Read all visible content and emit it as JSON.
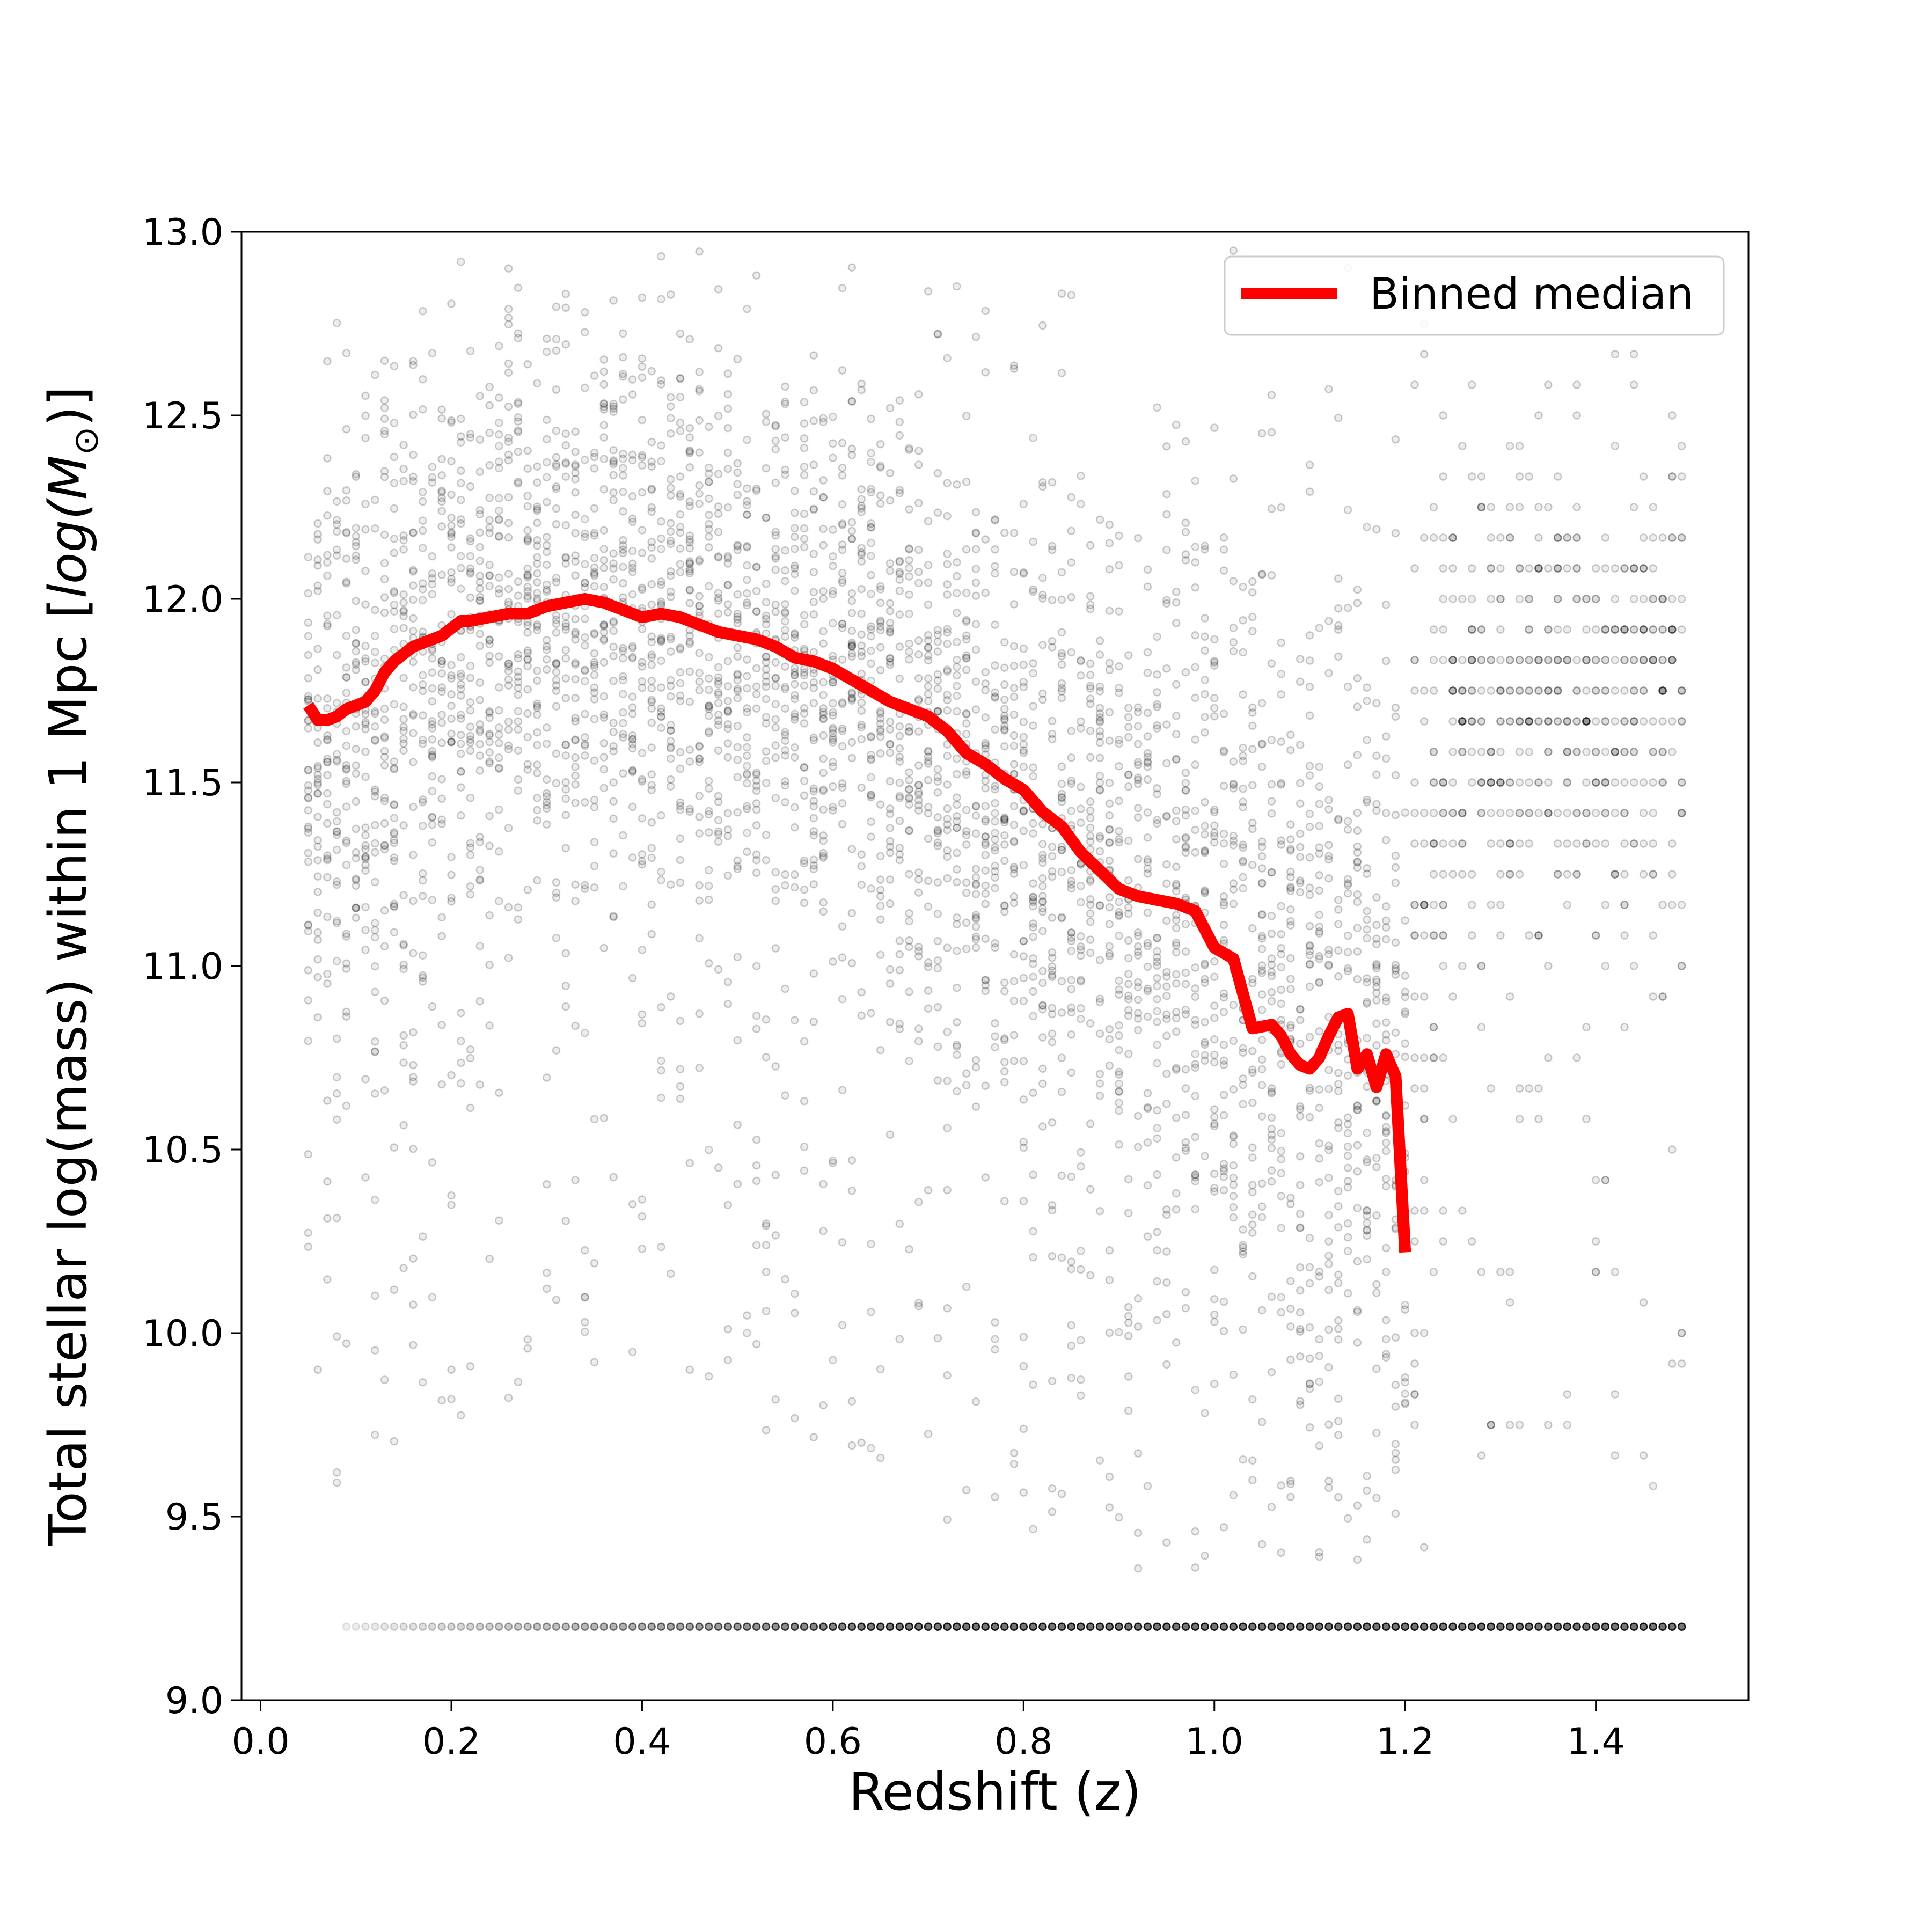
{
  "chart_data": {
    "type": "scatter",
    "xlabel": "Redshift (z)",
    "ylabel_main": "Total stellar log(mass) within 1 Mpc [",
    "ylabel_math": "log(M",
    "ylabel_sub": "⊙",
    "ylabel_close": ")]",
    "xlim": [
      -0.02,
      1.56
    ],
    "ylim": [
      9.0,
      13.0
    ],
    "xticks": [
      0.0,
      0.2,
      0.4,
      0.6,
      0.8,
      1.0,
      1.2,
      1.4
    ],
    "xtick_labels": [
      "0.0",
      "0.2",
      "0.4",
      "0.6",
      "0.8",
      "1.0",
      "1.2",
      "1.4"
    ],
    "yticks": [
      9.0,
      9.5,
      10.0,
      10.5,
      11.0,
      11.5,
      12.0,
      12.5,
      13.0
    ],
    "ytick_labels": [
      "9.0",
      "9.5",
      "10.0",
      "10.5",
      "11.0",
      "11.5",
      "12.0",
      "12.5",
      "13.0"
    ],
    "legend": {
      "position": "top-right",
      "entries": [
        {
          "label": "Binned median",
          "color": "#ff0000"
        }
      ]
    },
    "grid": false,
    "scatter_style": {
      "color": "#000000",
      "description": "semi-transparent gray points in vertical columns per redshift bin, with a floor row at 9.2"
    },
    "scatter_floor_value": 9.2,
    "scatter_envelope": {
      "x": [
        0.05,
        0.1,
        0.2,
        0.3,
        0.4,
        0.5,
        0.6,
        0.7,
        0.8,
        0.9,
        1.0,
        1.1,
        1.2,
        1.25,
        1.3,
        1.4,
        1.49
      ],
      "center": [
        11.55,
        11.65,
        11.85,
        11.95,
        11.95,
        11.85,
        11.75,
        11.6,
        11.4,
        11.25,
        11.1,
        10.9,
        10.7,
        11.7,
        11.7,
        11.7,
        11.7
      ],
      "spread": [
        0.45,
        0.5,
        0.5,
        0.45,
        0.45,
        0.45,
        0.45,
        0.5,
        0.55,
        0.6,
        0.65,
        0.7,
        0.7,
        0.4,
        0.4,
        0.4,
        0.4
      ]
    },
    "series": [
      {
        "name": "Binned median",
        "color": "#ff0000",
        "x": [
          0.05,
          0.06,
          0.07,
          0.08,
          0.09,
          0.1,
          0.11,
          0.12,
          0.13,
          0.14,
          0.15,
          0.16,
          0.17,
          0.18,
          0.19,
          0.2,
          0.21,
          0.22,
          0.24,
          0.26,
          0.28,
          0.3,
          0.32,
          0.34,
          0.36,
          0.38,
          0.4,
          0.42,
          0.44,
          0.46,
          0.48,
          0.5,
          0.52,
          0.54,
          0.56,
          0.58,
          0.6,
          0.62,
          0.64,
          0.66,
          0.68,
          0.7,
          0.72,
          0.74,
          0.76,
          0.78,
          0.8,
          0.82,
          0.84,
          0.86,
          0.88,
          0.9,
          0.92,
          0.94,
          0.96,
          0.98,
          1.0,
          1.02,
          1.04,
          1.06,
          1.07,
          1.08,
          1.09,
          1.1,
          1.11,
          1.12,
          1.13,
          1.14,
          1.15,
          1.16,
          1.17,
          1.18,
          1.19,
          1.2
        ],
        "y": [
          11.71,
          11.67,
          11.67,
          11.68,
          11.7,
          11.71,
          11.72,
          11.75,
          11.8,
          11.83,
          11.85,
          11.87,
          11.88,
          11.89,
          11.9,
          11.92,
          11.94,
          11.94,
          11.95,
          11.96,
          11.96,
          11.98,
          11.99,
          12.0,
          11.99,
          11.97,
          11.95,
          11.96,
          11.95,
          11.93,
          11.91,
          11.9,
          11.89,
          11.87,
          11.84,
          11.83,
          11.81,
          11.78,
          11.75,
          11.72,
          11.7,
          11.68,
          11.64,
          11.58,
          11.55,
          11.51,
          11.48,
          11.42,
          11.38,
          11.31,
          11.26,
          11.21,
          11.19,
          11.18,
          11.17,
          11.15,
          11.05,
          11.02,
          10.83,
          10.84,
          10.81,
          10.76,
          10.73,
          10.72,
          10.75,
          10.81,
          10.86,
          10.87,
          10.72,
          10.76,
          10.67,
          10.76,
          10.7,
          10.22
        ]
      }
    ]
  }
}
